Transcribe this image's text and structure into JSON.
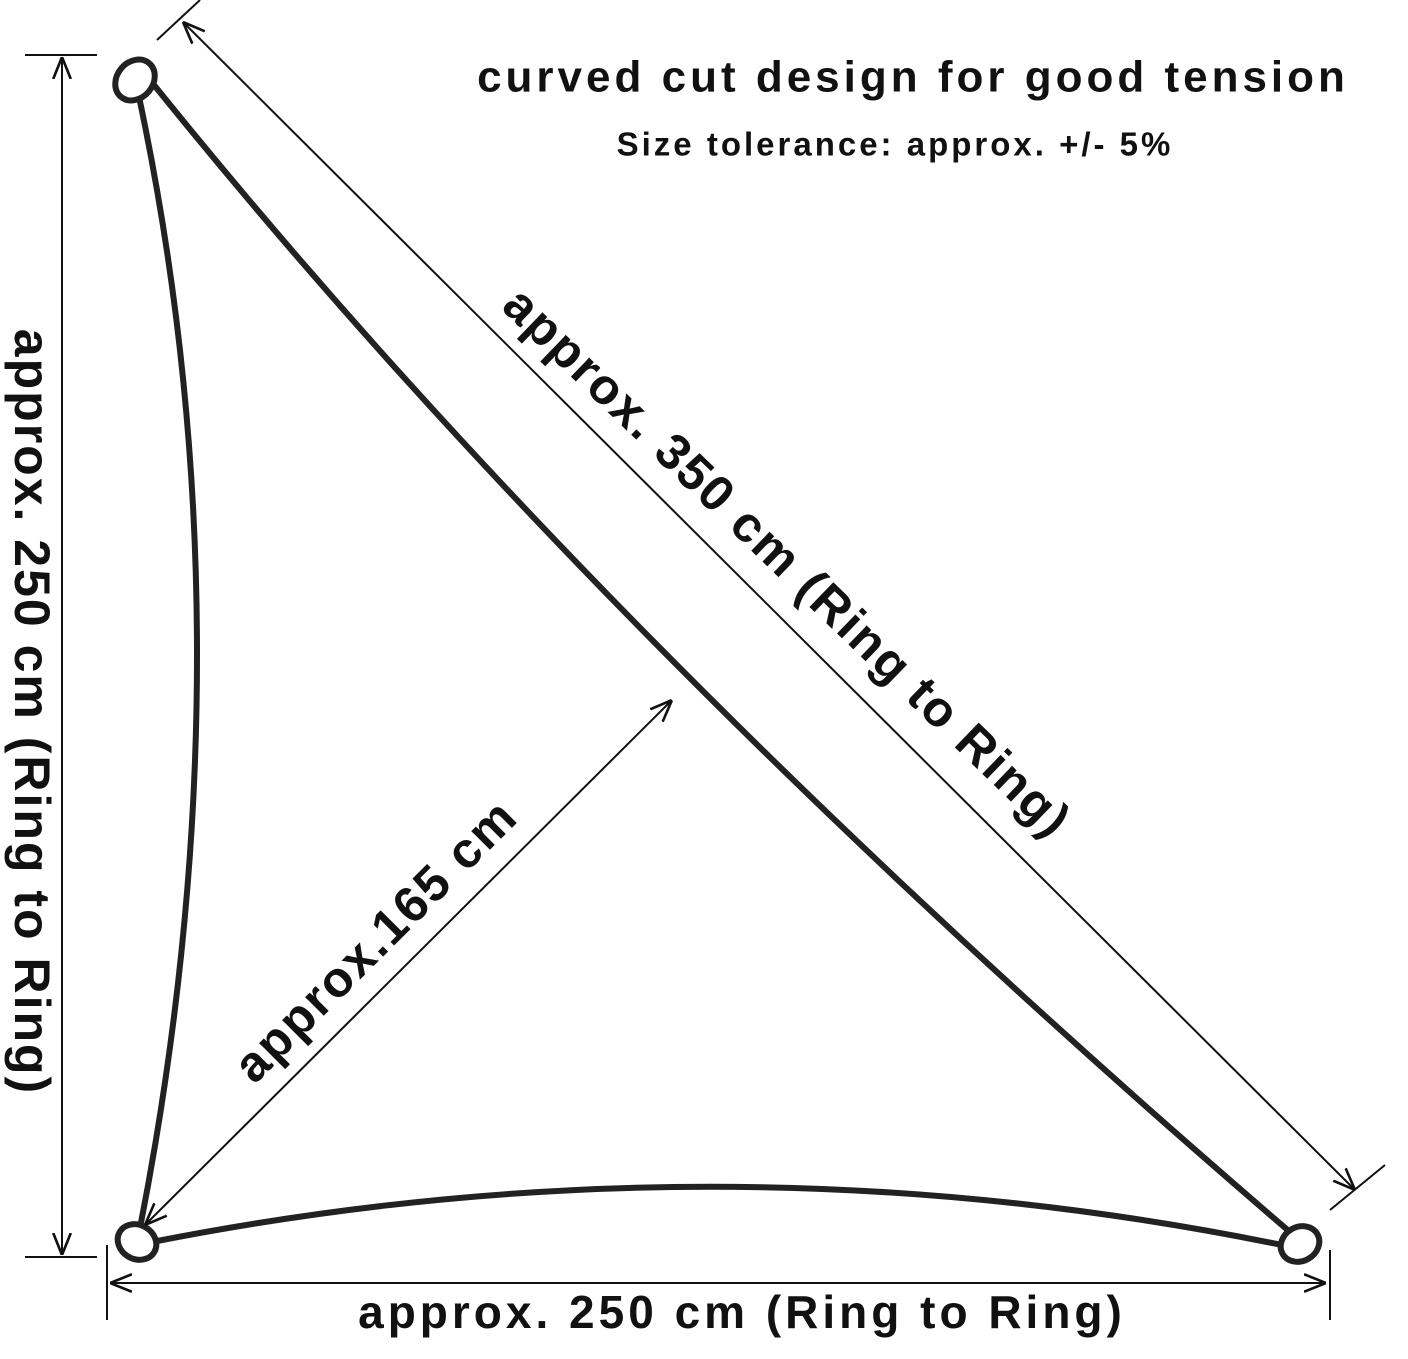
{
  "header": {
    "title": "curved cut design for good tension",
    "subtitle": "Size tolerance: approx. +/- 5%"
  },
  "dimensions": {
    "hypotenuse": "approx. 350 cm (Ring to Ring)",
    "left_side": "approx. 250 cm (Ring to Ring)",
    "bottom_side": "approx. 250 cm (Ring to Ring)",
    "height": "approx.165 cm"
  }
}
